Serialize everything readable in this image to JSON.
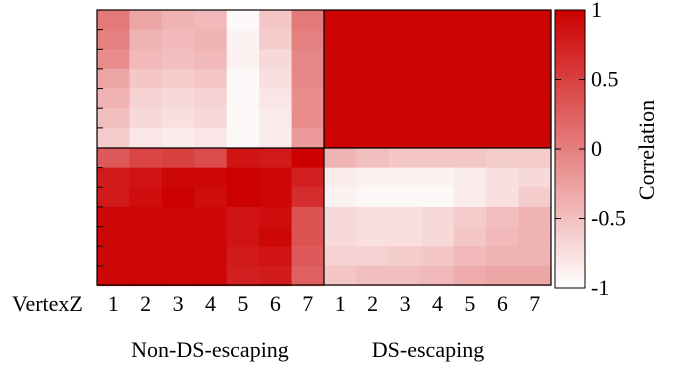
{
  "chart_data": {
    "type": "heatmap",
    "xlabel": "VertexZ",
    "x_tick_labels": [
      "1",
      "2",
      "3",
      "4",
      "5",
      "6",
      "7",
      "1",
      "2",
      "3",
      "4",
      "5",
      "6",
      "7"
    ],
    "group_labels": [
      "Non-DS-escaping",
      "DS-escaping"
    ],
    "color_scale": {
      "label": "Correlation",
      "min": -1,
      "max": 1,
      "ticks": [
        "1",
        "0.5",
        "0",
        "-0.5",
        "-1"
      ],
      "tick_values": [
        1,
        0.5,
        0,
        -0.5,
        -1
      ],
      "low_color": "#ffffff",
      "high_color": "#cc0000"
    },
    "y_ticks_per_panel": 6,
    "panels": {
      "top_left": [
        [
          0.05,
          -0.3,
          -0.4,
          -0.45,
          -0.95,
          -0.55,
          0.05
        ],
        [
          0.0,
          -0.4,
          -0.45,
          -0.4,
          -0.9,
          -0.6,
          0.0
        ],
        [
          -0.1,
          -0.45,
          -0.5,
          -0.45,
          -0.9,
          -0.7,
          -0.05
        ],
        [
          -0.3,
          -0.55,
          -0.6,
          -0.55,
          -0.95,
          -0.75,
          -0.05
        ],
        [
          -0.4,
          -0.65,
          -0.7,
          -0.65,
          -0.95,
          -0.8,
          -0.1
        ],
        [
          -0.5,
          -0.7,
          -0.75,
          -0.7,
          -0.95,
          -0.85,
          -0.1
        ],
        [
          -0.6,
          -0.8,
          -0.85,
          -0.8,
          -0.95,
          -0.85,
          -0.2
        ]
      ],
      "top_right": [
        [
          0.97,
          0.97,
          0.97,
          0.97,
          0.97,
          0.97,
          0.97
        ],
        [
          0.97,
          0.97,
          0.97,
          0.97,
          0.97,
          0.97,
          0.97
        ],
        [
          0.97,
          0.97,
          0.97,
          0.97,
          0.97,
          0.97,
          0.97
        ],
        [
          0.97,
          0.97,
          0.97,
          0.97,
          0.97,
          0.97,
          0.97
        ],
        [
          0.97,
          0.97,
          0.97,
          0.97,
          0.97,
          0.97,
          0.97
        ],
        [
          0.97,
          0.97,
          0.97,
          0.97,
          0.97,
          0.97,
          0.97
        ],
        [
          0.97,
          0.97,
          0.97,
          0.97,
          0.97,
          0.97,
          0.97
        ]
      ],
      "bottom_left": [
        [
          0.3,
          0.45,
          0.5,
          0.4,
          0.85,
          0.8,
          1.0
        ],
        [
          0.8,
          0.85,
          0.95,
          0.95,
          1.0,
          0.95,
          0.75
        ],
        [
          0.8,
          0.9,
          1.0,
          0.9,
          1.0,
          0.95,
          0.65
        ],
        [
          0.95,
          0.95,
          0.95,
          0.95,
          0.85,
          0.9,
          0.35
        ],
        [
          0.95,
          0.95,
          0.95,
          0.95,
          0.85,
          0.95,
          0.35
        ],
        [
          0.95,
          0.95,
          0.95,
          0.95,
          0.8,
          0.85,
          0.3
        ],
        [
          0.95,
          0.95,
          0.95,
          0.95,
          0.75,
          0.8,
          0.25
        ]
      ],
      "bottom_right": [
        [
          -0.4,
          -0.5,
          -0.55,
          -0.55,
          -0.55,
          -0.6,
          -0.6
        ],
        [
          -0.85,
          -0.9,
          -0.9,
          -0.9,
          -0.85,
          -0.75,
          -0.7
        ],
        [
          -0.9,
          -0.95,
          -0.95,
          -0.95,
          -0.85,
          -0.75,
          -0.6
        ],
        [
          -0.7,
          -0.75,
          -0.75,
          -0.7,
          -0.6,
          -0.5,
          -0.4
        ],
        [
          -0.7,
          -0.75,
          -0.75,
          -0.7,
          -0.55,
          -0.45,
          -0.4
        ],
        [
          -0.65,
          -0.65,
          -0.6,
          -0.55,
          -0.45,
          -0.4,
          -0.4
        ],
        [
          -0.55,
          -0.5,
          -0.5,
          -0.45,
          -0.35,
          -0.3,
          -0.3
        ]
      ]
    }
  }
}
